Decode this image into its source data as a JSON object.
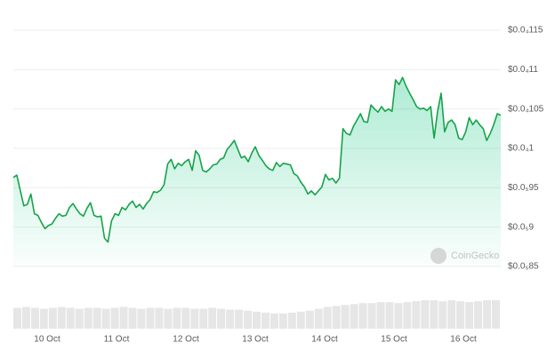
{
  "chart_data": {
    "type": "line",
    "x_labels": [
      "10 Oct",
      "11 Oct",
      "12 Oct",
      "13 Oct",
      "14 Oct",
      "15 Oct",
      "16 Oct"
    ],
    "series": [
      {
        "color": "#16a34a",
        "values": [
          9.63e-06,
          9.66e-06,
          9.46e-06,
          9.27e-06,
          9.29e-06,
          9.42e-06,
          9.17e-06,
          9.15e-06,
          9.06e-06,
          8.98e-06,
          9.02e-06,
          9.04e-06,
          9.11e-06,
          9.17e-06,
          9.14e-06,
          9.15e-06,
          9.25e-06,
          9.3e-06,
          9.23e-06,
          9.17e-06,
          9.14e-06,
          9.24e-06,
          9.31e-06,
          9.15e-06,
          9.13e-06,
          9.14e-06,
          8.86e-06,
          8.81e-06,
          9.08e-06,
          9.17e-06,
          9.15e-06,
          9.25e-06,
          9.22e-06,
          9.29e-06,
          9.33e-06,
          9.25e-06,
          9.29e-06,
          9.23e-06,
          9.3e-06,
          9.35e-06,
          9.45e-06,
          9.44e-06,
          9.47e-06,
          9.54e-06,
          9.8e-06,
          9.86e-06,
          9.74e-06,
          9.81e-06,
          9.78e-06,
          9.83e-06,
          9.86e-06,
          9.72e-06,
          9.97e-06,
          9.91e-06,
          9.72e-06,
          9.7e-06,
          9.74e-06,
          9.79e-06,
          9.8e-06,
          9.86e-06,
          9.88e-06,
          9.99e-06,
          1.004e-05,
          1.01e-05,
          9.99e-06,
          9.88e-06,
          9.9e-06,
          9.83e-06,
          9.94e-06,
          1.002e-05,
          9.91e-06,
          9.85e-06,
          9.78e-06,
          9.74e-06,
          9.72e-06,
          9.82e-06,
          9.77e-06,
          9.81e-06,
          9.8e-06,
          9.79e-06,
          9.68e-06,
          9.65e-06,
          9.57e-06,
          9.51e-06,
          9.42e-06,
          9.46e-06,
          9.41e-06,
          9.46e-06,
          9.51e-06,
          9.67e-06,
          9.6e-06,
          9.62e-06,
          9.56e-06,
          9.62e-06,
          1.025e-05,
          1.019e-05,
          1.017e-05,
          1.028e-05,
          1.036e-05,
          1.044e-05,
          1.034e-05,
          1.033e-05,
          1.055e-05,
          1.05e-05,
          1.046e-05,
          1.053e-05,
          1.047e-05,
          1.05e-05,
          1.047e-05,
          1.087e-05,
          1.081e-05,
          1.09e-05,
          1.079e-05,
          1.07e-05,
          1.062e-05,
          1.053e-05,
          1.05e-05,
          1.051e-05,
          1.048e-05,
          1.053e-05,
          1.013e-05,
          1.047e-05,
          1.07e-05,
          1.021e-05,
          1.033e-05,
          1.036e-05,
          1.03e-05,
          1.013e-05,
          1.011e-05,
          1.021e-05,
          1.039e-05,
          1.03e-05,
          1.036e-05,
          1.03e-05,
          1.025e-05,
          1.01e-05,
          1.019e-05,
          1.03e-05,
          1.044e-05,
          1.042e-05
        ]
      }
    ],
    "volume": [
      22,
      23,
      22,
      21,
      22,
      23,
      22,
      21,
      22,
      22,
      21,
      22,
      23,
      22,
      21,
      22,
      22,
      21,
      22,
      22,
      21,
      21,
      22,
      21,
      20,
      20,
      19,
      18,
      17,
      16,
      16,
      17,
      18,
      19,
      21,
      23,
      24,
      25,
      26,
      27,
      27,
      28,
      28,
      27,
      28,
      29,
      30,
      30,
      29,
      30,
      29,
      28,
      29,
      30,
      30
    ],
    "ylim": [
      8.5e-06,
      1.15e-05
    ],
    "yticks": [
      {
        "value": 8.5e-06,
        "label": "$0.0₅85"
      },
      {
        "value": 9e-06,
        "label": "$0.0₅9"
      },
      {
        "value": 9.5e-06,
        "label": "$0.0₅95"
      },
      {
        "value": 1e-05,
        "label": "$0.0₄1"
      },
      {
        "value": 1.05e-05,
        "label": "$0.0₄105"
      },
      {
        "value": 1.1e-05,
        "label": "$0.0₄11"
      },
      {
        "value": 1.15e-05,
        "label": "$0.0₄115"
      }
    ],
    "grid": true,
    "watermark": "CoinGecko"
  }
}
